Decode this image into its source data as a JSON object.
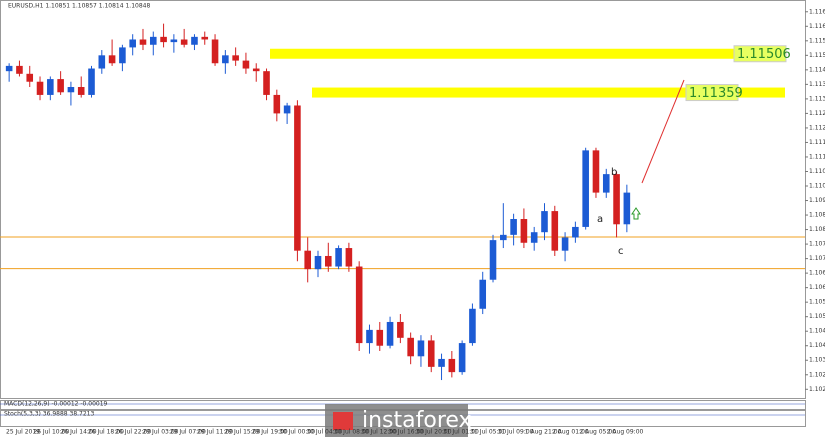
{
  "chart_data": {
    "type": "candlestick",
    "symbol_info": "EURUSD,H1  1.10851 1.10857 1.10814 1.10848",
    "up_color": "#1c5bd4",
    "down_color": "#d42020",
    "open": [
      1.1144,
      1.1146,
      1.1143,
      1.114,
      1.1135,
      1.1141,
      1.1136,
      1.1138,
      1.1135,
      1.1145,
      1.115,
      1.1147,
      1.1153,
      1.1156,
      1.1154,
      1.1157,
      1.1155,
      1.1156,
      1.1154,
      1.1157,
      1.1156,
      1.1147,
      1.115,
      1.1148,
      1.1145,
      1.1144,
      1.1135,
      1.1128,
      1.1131,
      1.1076,
      1.1069,
      1.1074,
      1.107,
      1.1077,
      1.107,
      1.1041,
      1.1046,
      1.104,
      1.1049,
      1.1043,
      1.1036,
      1.1042,
      1.1032,
      1.1035,
      1.103,
      1.1041,
      1.1054,
      1.1065,
      1.108,
      1.1082,
      1.1088,
      1.1079,
      1.1083,
      1.1091,
      1.1076,
      1.1081,
      1.1085,
      1.1114,
      1.1098,
      1.1105,
      1.1086
    ],
    "high": [
      1.1147,
      1.1148,
      1.1146,
      1.1142,
      1.1142,
      1.1144,
      1.114,
      1.1142,
      1.1146,
      1.1152,
      1.1156,
      1.1154,
      1.1158,
      1.116,
      1.1159,
      1.1162,
      1.1158,
      1.116,
      1.1158,
      1.1159,
      1.1158,
      1.1152,
      1.1153,
      1.1151,
      1.1147,
      1.1145,
      1.1137,
      1.1132,
      1.1133,
      1.1081,
      1.1076,
      1.1079,
      1.1078,
      1.1079,
      1.1072,
      1.1048,
      1.1049,
      1.1051,
      1.1052,
      1.1045,
      1.1044,
      1.1044,
      1.1037,
      1.1038,
      1.1042,
      1.1056,
      1.1068,
      1.1082,
      1.1094,
      1.109,
      1.1092,
      1.1085,
      1.1094,
      1.1093,
      1.1083,
      1.1087,
      1.1115,
      1.1115,
      1.1107,
      1.1106,
      1.1101
    ],
    "low": [
      1.114,
      1.1142,
      1.1138,
      1.1133,
      1.1133,
      1.1135,
      1.1131,
      1.1134,
      1.1134,
      1.1143,
      1.1146,
      1.1144,
      1.115,
      1.1152,
      1.115,
      1.1153,
      1.1151,
      1.1153,
      1.1152,
      1.1154,
      1.1146,
      1.1143,
      1.1146,
      1.1143,
      1.114,
      1.1133,
      1.1125,
      1.1124,
      1.1072,
      1.1064,
      1.1066,
      1.1068,
      1.1069,
      1.1068,
      1.1038,
      1.1037,
      1.1038,
      1.1039,
      1.1041,
      1.1033,
      1.1032,
      1.103,
      1.1027,
      1.1028,
      1.1029,
      1.104,
      1.1052,
      1.1064,
      1.1077,
      1.1078,
      1.1077,
      1.1076,
      1.108,
      1.1074,
      1.1072,
      1.1079,
      1.1084,
      1.1096,
      1.1096,
      1.1081,
      1.1083
    ],
    "close": [
      1.1146,
      1.1143,
      1.114,
      1.1135,
      1.1141,
      1.1136,
      1.1138,
      1.1135,
      1.1145,
      1.115,
      1.1147,
      1.1153,
      1.1156,
      1.1154,
      1.1157,
      1.1155,
      1.1156,
      1.1154,
      1.1157,
      1.1156,
      1.1147,
      1.115,
      1.1148,
      1.1145,
      1.1144,
      1.1135,
      1.1128,
      1.1131,
      1.1076,
      1.1069,
      1.1074,
      1.107,
      1.1077,
      1.107,
      1.1041,
      1.1046,
      1.104,
      1.1049,
      1.1043,
      1.1036,
      1.1042,
      1.1032,
      1.1035,
      1.103,
      1.1041,
      1.1054,
      1.1065,
      1.108,
      1.1082,
      1.1088,
      1.1079,
      1.1083,
      1.1091,
      1.1076,
      1.1081,
      1.1085,
      1.1114,
      1.1098,
      1.1105,
      1.1086,
      1.1098
    ],
    "ylim": [
      1.10202,
      1.11702
    ],
    "yticks": [
      1.11665,
      {
        "value": 1.1161,
        "label": "1.11610"
      },
      1.11555,
      {
        "value": 1.115,
        "label": "1.11500"
      },
      1.11445,
      {
        "value": 1.1139,
        "label": "1.11390"
      },
      1.11335,
      {
        "value": 1.1128,
        "label": "1.11280"
      },
      1.11225,
      {
        "value": 1.1117,
        "label": "1.11170"
      },
      1.11115,
      {
        "value": 1.1106,
        "label": "1.11060"
      },
      1.11005,
      {
        "value": 1.1095,
        "label": "1.10950"
      },
      1.10895,
      {
        "value": 1.1084,
        "label": "1.10840"
      },
      1.10785,
      {
        "value": 1.1073,
        "label": "1.10730"
      },
      1.10675,
      {
        "value": 1.1062,
        "label": "1.10620"
      },
      1.10565,
      {
        "value": 1.1051,
        "label": "1.10510"
      },
      1.10455,
      {
        "value": 1.104,
        "label": "1.10400"
      },
      1.10345,
      {
        "value": 1.1029,
        "label": "1.10290"
      },
      1.10235
    ],
    "resistance_zones": [
      1.11506,
      1.11359
    ],
    "zone_color": "#ffff00",
    "support_lines": [
      1.10812,
      1.10692
    ],
    "support_color": "#f0a020",
    "x_labels": [
      "25 Jul 2019",
      "26 Jul 10:00",
      "26 Jul 14:00",
      "26 Jul 18:00",
      "26 Jul 22:00",
      "29 Jul 03:00",
      "29 Jul 07:00",
      "29 Jul 11:00",
      "29 Jul 15:00",
      "29 Jul 19:00",
      "30 Jul 00:00",
      "30 Jul 04:00",
      "30 Jul 08:00",
      "30 Jul 12:00",
      "30 Jul 16:00",
      "30 Jul 20:00",
      "31 Jul 01:00",
      "31 Jul 05:00",
      "31 Jul 09:00",
      "1 Aug 21:00",
      "2 Aug 01:00",
      "2 Aug 05:00",
      "2 Aug 09:00"
    ],
    "annotations": [
      "a",
      "b",
      "c"
    ],
    "indicator_labels": [
      "MACD(12,26,9) -0.00012 -0.00019",
      "Stoch(5,3,3) 36.9888 38.7213"
    ],
    "watermark": "instaforex"
  }
}
